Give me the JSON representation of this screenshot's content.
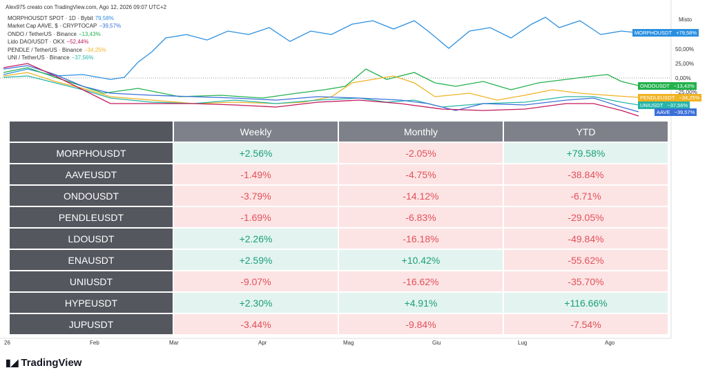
{
  "header": "Alex975 creato con TradingView.com, Ago 12, 2026 09:07 UTC+2",
  "legend": [
    {
      "name": "MORPHOUSDT SPOT · 1D · Bybit",
      "value": "79,58%",
      "color": "#2a8fe0"
    },
    {
      "name": "Market Cap AAVE, $ · CRYPTOCAP",
      "value": "−39,57%",
      "color": "#3a6fd8"
    },
    {
      "name": "ONDO / TetherUS · Binance",
      "value": "−13,43%",
      "color": "#22b14c"
    },
    {
      "name": "Lido DAO/USDT · OKX",
      "value": "−52,44%",
      "color": "#c2185b"
    },
    {
      "name": "PENDLE / TetherUS · Binance",
      "value": "−34,25%",
      "color": "#f0b323"
    },
    {
      "name": "UNI / TetherUS · Binance",
      "value": "−37,56%",
      "color": "#26b5a8"
    }
  ],
  "price_axis": {
    "title": "Misto",
    "labels": [
      "50,00%",
      "25,00%",
      "0,00%",
      "−25,00%"
    ]
  },
  "badges": [
    {
      "label": "MORPHOUSDT",
      "value": "+79,58%",
      "color": "#2a8fe0"
    },
    {
      "label": "ONDOUSDT",
      "value": "−13,43%",
      "color": "#22b14c"
    },
    {
      "label": "PENDLEUSDT",
      "value": "−34,25%",
      "color": "#f0b323"
    },
    {
      "label": "UNIUSDT",
      "value": "−37,56%",
      "color": "#26b5a8"
    },
    {
      "label": "AAVE",
      "value": "−39,57%",
      "color": "#3a6fd8"
    }
  ],
  "time_axis": [
    "26",
    "Feb",
    "Mar",
    "Apr",
    "Mag",
    "Giu",
    "Lug",
    "Ago"
  ],
  "table": {
    "columns": [
      "Weekly",
      "Monthly",
      "YTD"
    ],
    "rows": [
      {
        "name": "MORPHOUSDT",
        "cells": [
          "+2.56%",
          "-2.05%",
          "+79.58%"
        ]
      },
      {
        "name": "AAVEUSDT",
        "cells": [
          "-1.49%",
          "-4.75%",
          "-38.84%"
        ]
      },
      {
        "name": "ONDOUSDT",
        "cells": [
          "-3.79%",
          "-14.12%",
          "-6.71%"
        ]
      },
      {
        "name": "PENDLEUSDT",
        "cells": [
          "-1.69%",
          "-6.83%",
          "-29.05%"
        ]
      },
      {
        "name": "LDOUSDT",
        "cells": [
          "+2.26%",
          "-16.18%",
          "-49.84%"
        ]
      },
      {
        "name": "ENAUSDT",
        "cells": [
          "+2.59%",
          "+10.42%",
          "-55.62%"
        ]
      },
      {
        "name": "UNIUSDT",
        "cells": [
          "-9.07%",
          "-16.62%",
          "-35.70%"
        ]
      },
      {
        "name": "HYPEUSDT",
        "cells": [
          "+2.30%",
          "+4.91%",
          "+116.66%"
        ]
      },
      {
        "name": "JUPUSDT",
        "cells": [
          "-3.44%",
          "-9.84%",
          "-7.54%"
        ]
      }
    ]
  },
  "footer": "TradingView"
}
